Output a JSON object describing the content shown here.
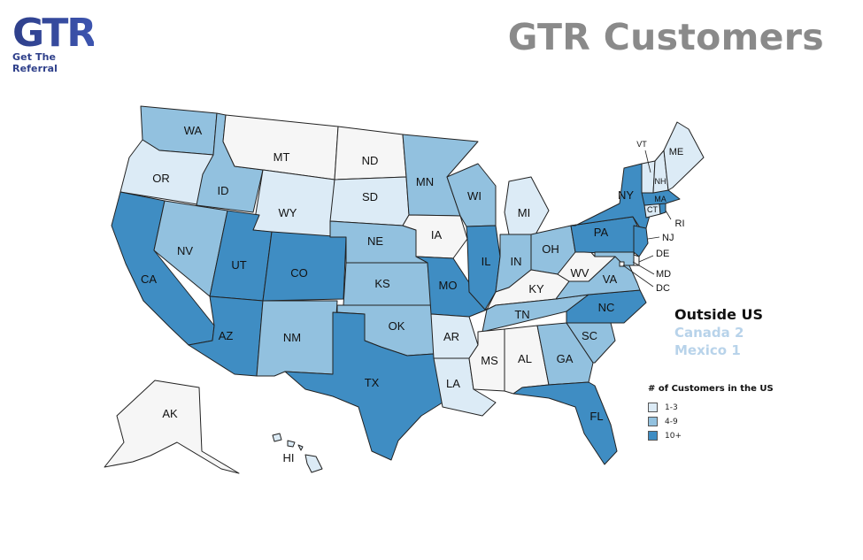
{
  "header": {
    "logo_text": "GTR",
    "logo_tagline": "Get The Referral",
    "title": "GTR Customers"
  },
  "colors": {
    "tier_low": "#dcebf6",
    "tier_mid": "#92c1df",
    "tier_high": "#3f8dc3",
    "none": "#f6f6f6",
    "logo": "#2e3f8a",
    "title": "#8a8a8a"
  },
  "outside_us": {
    "title": "Outside US",
    "items": [
      "Canada 2",
      "Mexico 1"
    ]
  },
  "legend": {
    "title": "# of Customers in the US",
    "items": [
      {
        "label": "1-3",
        "tier": "low"
      },
      {
        "label": "4-9",
        "tier": "mid"
      },
      {
        "label": "10+",
        "tier": "high"
      }
    ]
  },
  "states": {
    "WA": {
      "label": "WA",
      "tier": "mid"
    },
    "OR": {
      "label": "OR",
      "tier": "low"
    },
    "CA": {
      "label": "CA",
      "tier": "high"
    },
    "ID": {
      "label": "ID",
      "tier": "mid"
    },
    "NV": {
      "label": "NV",
      "tier": "mid"
    },
    "MT": {
      "label": "MT",
      "tier": "none"
    },
    "WY": {
      "label": "WY",
      "tier": "low"
    },
    "UT": {
      "label": "UT",
      "tier": "high"
    },
    "AZ": {
      "label": "AZ",
      "tier": "high"
    },
    "CO": {
      "label": "CO",
      "tier": "high"
    },
    "NM": {
      "label": "NM",
      "tier": "mid"
    },
    "ND": {
      "label": "ND",
      "tier": "none"
    },
    "SD": {
      "label": "SD",
      "tier": "low"
    },
    "NE": {
      "label": "NE",
      "tier": "mid"
    },
    "KS": {
      "label": "KS",
      "tier": "mid"
    },
    "OK": {
      "label": "OK",
      "tier": "mid"
    },
    "TX": {
      "label": "TX",
      "tier": "high"
    },
    "MN": {
      "label": "MN",
      "tier": "mid"
    },
    "IA": {
      "label": "IA",
      "tier": "none"
    },
    "MO": {
      "label": "MO",
      "tier": "high"
    },
    "AR": {
      "label": "AR",
      "tier": "low"
    },
    "LA": {
      "label": "LA",
      "tier": "low"
    },
    "WI": {
      "label": "WI",
      "tier": "mid"
    },
    "IL": {
      "label": "IL",
      "tier": "high"
    },
    "MI": {
      "label": "MI",
      "tier": "low"
    },
    "IN": {
      "label": "IN",
      "tier": "mid"
    },
    "OH": {
      "label": "OH",
      "tier": "mid"
    },
    "KY": {
      "label": "KY",
      "tier": "none"
    },
    "TN": {
      "label": "TN",
      "tier": "mid"
    },
    "MS": {
      "label": "MS",
      "tier": "none"
    },
    "AL": {
      "label": "AL",
      "tier": "none"
    },
    "GA": {
      "label": "GA",
      "tier": "mid"
    },
    "FL": {
      "label": "FL",
      "tier": "high"
    },
    "SC": {
      "label": "SC",
      "tier": "mid"
    },
    "NC": {
      "label": "NC",
      "tier": "high"
    },
    "VA": {
      "label": "VA",
      "tier": "mid"
    },
    "WV": {
      "label": "WV",
      "tier": "none"
    },
    "PA": {
      "label": "PA",
      "tier": "high"
    },
    "NY": {
      "label": "NY",
      "tier": "high"
    },
    "NJ": {
      "label": "NJ",
      "tier": "high"
    },
    "DE": {
      "label": "DE",
      "tier": "none"
    },
    "MD": {
      "label": "MD",
      "tier": "mid"
    },
    "DC": {
      "label": "DC",
      "tier": "none"
    },
    "CT": {
      "label": "CT",
      "tier": "low"
    },
    "RI": {
      "label": "RI",
      "tier": "high"
    },
    "MA": {
      "label": "MA",
      "tier": "high"
    },
    "VT": {
      "label": "VT",
      "tier": "low"
    },
    "NH": {
      "label": "NH",
      "tier": "low"
    },
    "ME": {
      "label": "ME",
      "tier": "low"
    },
    "AK": {
      "label": "AK",
      "tier": "none"
    },
    "HI": {
      "label": "HI",
      "tier": "low"
    }
  }
}
